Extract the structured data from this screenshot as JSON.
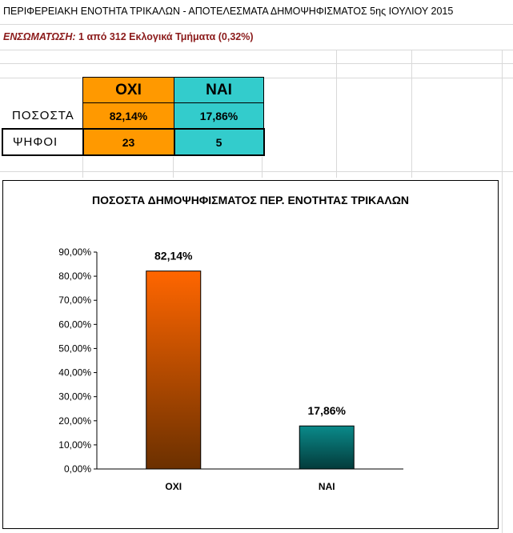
{
  "sheet_title": "ΠΕΡΙΦΕΡΕΙΑΚΗ ΕΝΟΤΗΤΑ ΤΡΙΚΑΛΩΝ - ΑΠΟΤΕΛΕΣΜΑΤΑ ΔΗΜΟΨΗΦΙΣΜΑΤΟΣ 5ης ΙΟΥΛΙΟΥ 2015",
  "integration": {
    "label": "ΕΝΣΩΜΑΤΩΣΗ:",
    "value": "1  από 312 Εκλογικά Τμήματα (0,32%)"
  },
  "table": {
    "columns": [
      "ΟΧΙ",
      "ΝΑΙ"
    ],
    "rows": [
      {
        "label": "ΠΟΣΟΣΤΑ",
        "values": [
          "82,14%",
          "17,86%"
        ]
      },
      {
        "label": "ΨΗΦΟΙ",
        "values": [
          "23",
          "5"
        ]
      }
    ]
  },
  "colors": {
    "no": "#ff9900",
    "yes": "#33cccc",
    "subtitle": "#8b1a1a"
  },
  "chart_data": {
    "type": "bar",
    "title": "ΠΟΣΟΣΤΑ ΔΗΜΟΨΗΦΙΣΜΑΤΟΣ ΠΕΡ. ΕΝΟΤΗΤΑΣ ΤΡΙΚΑΛΩΝ",
    "categories": [
      "ΟΧΙ",
      "ΝΑΙ"
    ],
    "values": [
      82.14,
      17.86
    ],
    "data_labels": [
      "82,14%",
      "17,86%"
    ],
    "ylim": [
      0,
      90
    ],
    "yticks": [
      "0,00%",
      "10,00%",
      "20,00%",
      "30,00%",
      "40,00%",
      "50,00%",
      "60,00%",
      "70,00%",
      "80,00%",
      "90,00%"
    ],
    "xlabel": "",
    "ylabel": "",
    "grid": false,
    "legend": "none"
  }
}
